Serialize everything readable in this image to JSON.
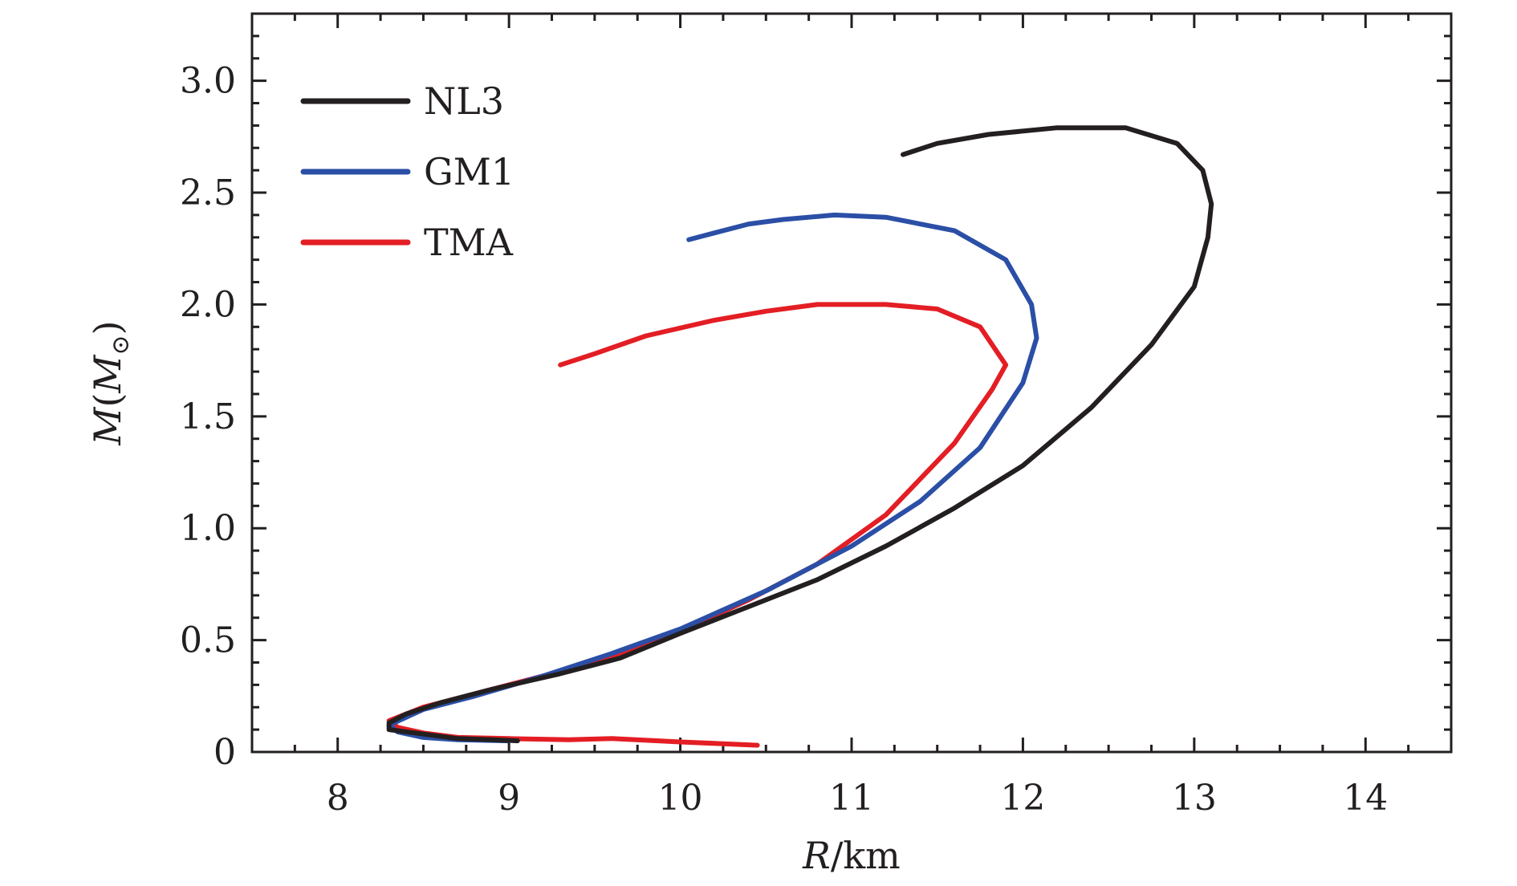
{
  "chart_data": {
    "type": "line",
    "xlabel": "R/km",
    "ylabel": "M(M⊙)",
    "xlim": [
      7.5,
      14.5
    ],
    "ylim": [
      0,
      3.3
    ],
    "xticks": [
      8,
      9,
      10,
      11,
      12,
      13,
      14
    ],
    "yticks": [
      0,
      0.5,
      1.0,
      1.5,
      2.0,
      2.5,
      3.0
    ],
    "xtick_labels": [
      "8",
      "9",
      "10",
      "11",
      "12",
      "13",
      "14"
    ],
    "ytick_labels": [
      "0",
      "0.5",
      "1.0",
      "1.5",
      "2.0",
      "2.5",
      "3.0"
    ],
    "grid": false,
    "legend_position": "top-left",
    "series": [
      {
        "name": "NL3",
        "color": "#231f20",
        "points": [
          [
            9.05,
            0.05
          ],
          [
            8.9,
            0.055
          ],
          [
            8.7,
            0.06
          ],
          [
            8.5,
            0.08
          ],
          [
            8.3,
            0.1
          ],
          [
            8.3,
            0.13
          ],
          [
            8.4,
            0.17
          ],
          [
            8.6,
            0.22
          ],
          [
            8.9,
            0.28
          ],
          [
            9.3,
            0.35
          ],
          [
            9.65,
            0.42
          ],
          [
            10.0,
            0.53
          ],
          [
            10.4,
            0.65
          ],
          [
            10.8,
            0.77
          ],
          [
            11.2,
            0.92
          ],
          [
            11.6,
            1.09
          ],
          [
            12.0,
            1.28
          ],
          [
            12.4,
            1.54
          ],
          [
            12.75,
            1.82
          ],
          [
            13.0,
            2.08
          ],
          [
            13.08,
            2.3
          ],
          [
            13.1,
            2.45
          ],
          [
            13.05,
            2.6
          ],
          [
            12.9,
            2.72
          ],
          [
            12.6,
            2.79
          ],
          [
            12.2,
            2.79
          ],
          [
            11.8,
            2.76
          ],
          [
            11.5,
            2.72
          ],
          [
            11.3,
            2.67
          ]
        ]
      },
      {
        "name": "GM1",
        "color": "#2b4fa6",
        "points": [
          [
            9.0,
            0.05
          ],
          [
            8.7,
            0.055
          ],
          [
            8.5,
            0.065
          ],
          [
            8.35,
            0.09
          ],
          [
            8.3,
            0.12
          ],
          [
            8.5,
            0.19
          ],
          [
            8.8,
            0.25
          ],
          [
            9.2,
            0.34
          ],
          [
            9.6,
            0.44
          ],
          [
            10.0,
            0.55
          ],
          [
            10.5,
            0.72
          ],
          [
            11.0,
            0.92
          ],
          [
            11.4,
            1.12
          ],
          [
            11.75,
            1.36
          ],
          [
            12.0,
            1.65
          ],
          [
            12.08,
            1.85
          ],
          [
            12.05,
            2.0
          ],
          [
            11.9,
            2.2
          ],
          [
            11.6,
            2.33
          ],
          [
            11.2,
            2.39
          ],
          [
            10.9,
            2.4
          ],
          [
            10.6,
            2.38
          ],
          [
            10.4,
            2.36
          ],
          [
            10.2,
            2.32
          ],
          [
            10.05,
            2.29
          ]
        ]
      },
      {
        "name": "TMA",
        "color": "#e31e24",
        "points": [
          [
            10.45,
            0.03
          ],
          [
            10.0,
            0.045
          ],
          [
            9.6,
            0.06
          ],
          [
            9.35,
            0.055
          ],
          [
            9.0,
            0.06
          ],
          [
            8.7,
            0.065
          ],
          [
            8.5,
            0.085
          ],
          [
            8.35,
            0.11
          ],
          [
            8.3,
            0.14
          ],
          [
            8.5,
            0.2
          ],
          [
            8.8,
            0.26
          ],
          [
            9.1,
            0.32
          ],
          [
            9.5,
            0.4
          ],
          [
            10.0,
            0.54
          ],
          [
            10.4,
            0.68
          ],
          [
            10.8,
            0.84
          ],
          [
            11.2,
            1.06
          ],
          [
            11.6,
            1.38
          ],
          [
            11.82,
            1.62
          ],
          [
            11.9,
            1.73
          ],
          [
            11.75,
            1.9
          ],
          [
            11.5,
            1.98
          ],
          [
            11.2,
            2.0
          ],
          [
            10.8,
            2.0
          ],
          [
            10.5,
            1.97
          ],
          [
            10.2,
            1.93
          ],
          [
            9.8,
            1.86
          ],
          [
            9.5,
            1.78
          ],
          [
            9.3,
            1.73
          ]
        ]
      }
    ]
  }
}
